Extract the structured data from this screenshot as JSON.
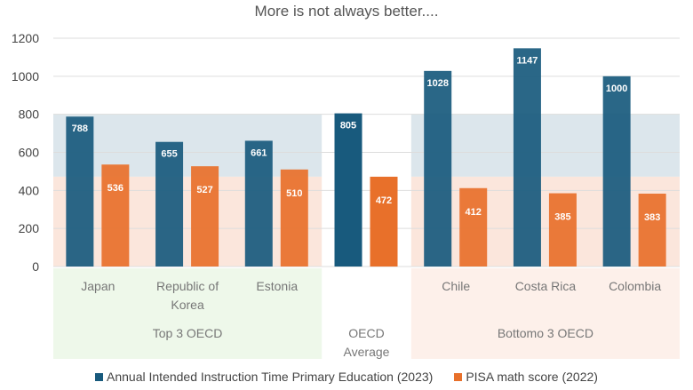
{
  "chart_data": {
    "type": "bar",
    "title": "More  is not always better....",
    "categories": [
      "Japan",
      "Republic of Korea",
      "Estonia",
      "OECD Average",
      "Chile",
      "Costa Rica",
      "Colombia"
    ],
    "groups": [
      {
        "label": "Top 3 OECD",
        "members": [
          "Japan",
          "Republic of Korea",
          "Estonia"
        ],
        "color": "#eef8ea"
      },
      {
        "label": "OECD Average",
        "members": [
          "OECD Average"
        ]
      },
      {
        "label": "Bottomo 3 OECD",
        "members": [
          "Chile",
          "Costa Rica",
          "Colombia"
        ],
        "color": "#fdf0ea"
      }
    ],
    "series": [
      {
        "name": "Annual Intended Instruction Time Primary Education (2023)",
        "color": "#185a7d",
        "values": [
          788,
          655,
          661,
          805,
          1028,
          1147,
          1000
        ]
      },
      {
        "name": "PISA math score (2022)",
        "color": "#e8702a",
        "values": [
          536,
          527,
          510,
          472,
          412,
          385,
          383
        ]
      }
    ],
    "bands": [
      {
        "from": 472,
        "to": 800,
        "color": "#dce6ec"
      },
      {
        "from": 0,
        "to": 472,
        "color": "#fbe6dc"
      }
    ],
    "ylim": [
      0,
      1200
    ],
    "yticks": [
      0,
      200,
      400,
      600,
      800,
      1000,
      1200
    ],
    "grid": true,
    "legend": "bottom"
  }
}
